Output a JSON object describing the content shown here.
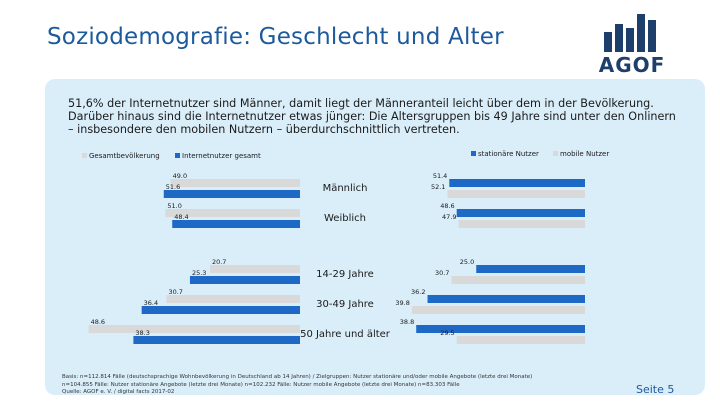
{
  "slide": {
    "title": "Soziodemografie: Geschlecht und Alter",
    "logo_text": "AGOF",
    "intro": "51,6% der Internetnutzer sind Männer, damit liegt der Männeranteil leicht über dem in der Bevölkerung. Darüber hinaus sind die Internetnutzer etwas jünger: Die Altersgruppen bis 49 Jahre sind unter den Onlinern – insbesondere den mobilen Nutzern – überdurchschnittlich vertreten.",
    "source_line1": "Basis: n=112.814 Fälle (deutschsprachige Wohnbevölkerung in Deutschland ab 14 Jahren) / Zielgruppen: Nutzer stationäre und/oder mobile Angebote (letzte drei Monate)",
    "source_line2": "n=104.855 Fälle: Nutzer stationäre Angebote (letzte drei Monate) n=102.232 Fälle: Nutzer mobile Angebote (letzte drei Monate) n=83.303 Fälle",
    "source_line3": "Quelle: AGOF e. V. / digital facts 2017-02",
    "page_label": "Seite 5"
  },
  "colors": {
    "title": "#1d5a9c",
    "panel": "#daeefa",
    "gesamtbevoelkerung": "#d9d9d9",
    "internetnutzer": "#1f69c6",
    "stationaer": "#1f69c6",
    "mobil": "#d9d9d9",
    "logo": "#1f3f6b"
  },
  "chart_data": {
    "type": "bar",
    "orientation": "horizontal",
    "layout": "butterfly",
    "categories": [
      "Männlich",
      "Weiblich",
      "14-29 Jahre",
      "30-49 Jahre",
      "50 Jahre und älter"
    ],
    "left": {
      "series": [
        {
          "name": "Gesamtbevölkerung",
          "values": [
            49.0,
            51.0,
            20.7,
            30.7,
            48.6
          ]
        },
        {
          "name": "Internetnutzer gesamt",
          "values": [
            51.6,
            48.4,
            25.3,
            36.4,
            38.3
          ]
        }
      ],
      "legend_position": "top-left"
    },
    "right": {
      "series": [
        {
          "name": "stationäre Nutzer",
          "values": [
            51.4,
            48.6,
            25.0,
            36.2,
            38.8
          ]
        },
        {
          "name": "mobile Nutzer",
          "values": [
            52.1,
            47.9,
            30.7,
            39.8,
            29.5
          ]
        }
      ],
      "legend_position": "top-right"
    },
    "value_labels": [
      [
        "49.0",
        "51.6",
        "51.4",
        "52.1"
      ],
      [
        "51.0",
        "48.4",
        "48.6",
        "47.9"
      ],
      [
        "20.7",
        "25.3",
        "25.0",
        "30.7"
      ],
      [
        "30.7",
        "36.4",
        "36.2",
        "39.8"
      ],
      [
        "48.6",
        "38.3",
        "38.8",
        "29.5"
      ]
    ]
  }
}
